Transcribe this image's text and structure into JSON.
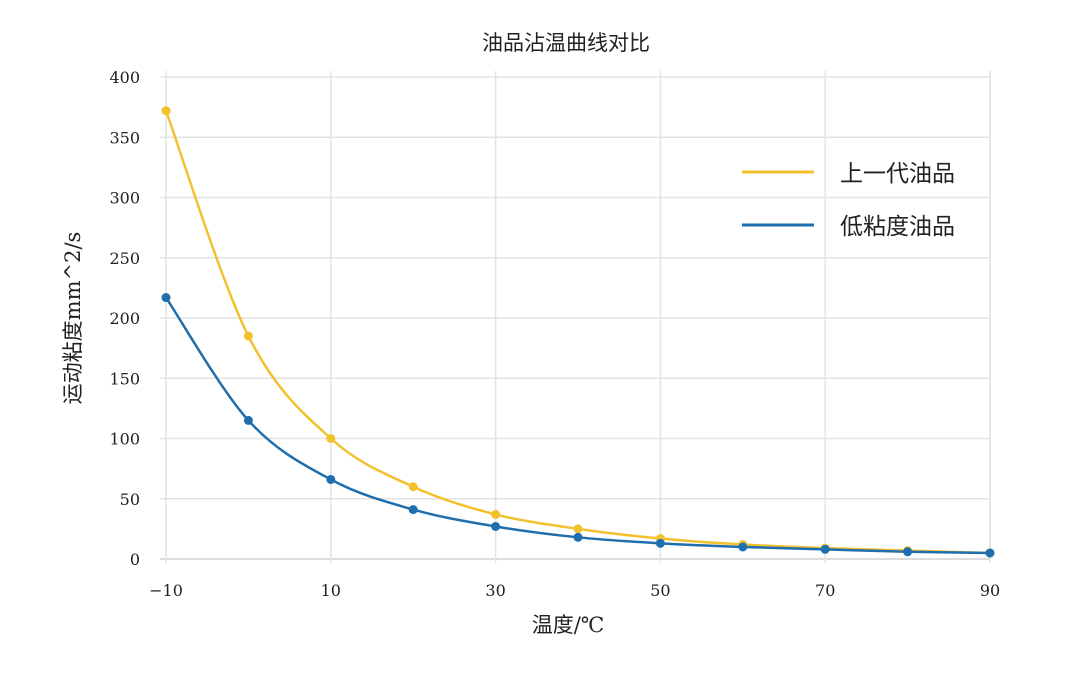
{
  "chart_data": {
    "type": "line",
    "title": "油品沾温曲线对比",
    "xlabel": "温度/℃",
    "ylabel": "运动粘度mm^2/s",
    "xlim": [
      -10,
      90
    ],
    "ylim": [
      0,
      400
    ],
    "xticks": [
      -10,
      10,
      30,
      50,
      70,
      90
    ],
    "yticks": [
      0,
      50,
      100,
      150,
      200,
      250,
      300,
      350,
      400
    ],
    "grid": true,
    "legend_position": "right",
    "x": [
      -10,
      0,
      10,
      20,
      30,
      40,
      50,
      60,
      70,
      80,
      90
    ],
    "series": [
      {
        "name": "上一代油品",
        "color": "#F2C12E",
        "values": [
          372,
          185,
          100,
          60,
          37,
          25,
          17,
          12,
          9,
          7,
          5
        ]
      },
      {
        "name": "低粘度油品",
        "color": "#1F6FAE",
        "values": [
          217,
          115,
          66,
          41,
          27,
          18,
          13,
          10,
          8,
          6,
          5
        ]
      }
    ]
  }
}
